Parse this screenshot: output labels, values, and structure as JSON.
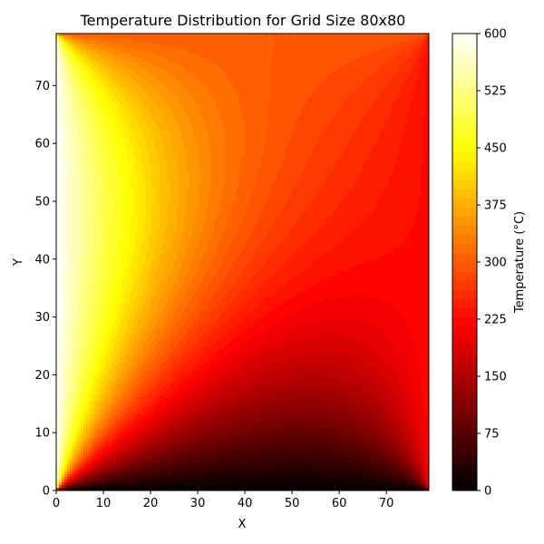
{
  "chart_data": {
    "type": "heatmap",
    "title": "Temperature Distribution for Grid Size 80x80",
    "xlabel": "X",
    "ylabel": "Y",
    "xlim": [
      0,
      79
    ],
    "ylim": [
      0,
      79
    ],
    "x_ticks": [
      "0",
      "10",
      "20",
      "30",
      "40",
      "50",
      "60",
      "70"
    ],
    "y_ticks": [
      "0",
      "10",
      "20",
      "30",
      "40",
      "50",
      "60",
      "70"
    ],
    "colorbar": {
      "label": "Temperature (°C)",
      "range": [
        0,
        600
      ],
      "ticks": [
        "0",
        "75",
        "150",
        "225",
        "300",
        "375",
        "450",
        "525",
        "600"
      ],
      "colormap": "hot",
      "levels": 50
    },
    "boundary_conditions": {
      "left_edge_x0": 600,
      "bottom_edge_y0": 0,
      "right_edge_x79": 225,
      "top_edge_y79": 300
    },
    "grid": false,
    "legend": "none"
  }
}
